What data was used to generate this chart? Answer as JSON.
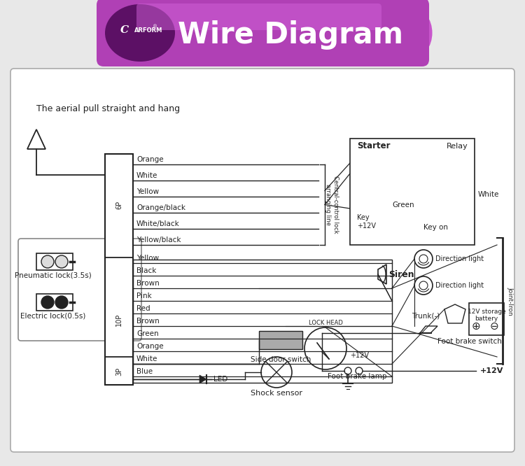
{
  "title": "Wire Diagram",
  "logo_text": "CARFORM",
  "bg_color": "#e8e8e8",
  "diagram_bg": "#ffffff",
  "wire_lines_6p": [
    "Orange",
    "White",
    "Yellow",
    "Orange/black",
    "White/black",
    "Yellow/black"
  ],
  "wire_lines_10p": [
    "Yellow",
    "Black",
    "Brown",
    "Pink",
    "Red",
    "Brown",
    "Green",
    "Orange",
    "White",
    "Blue"
  ],
  "label_6p": "6P",
  "label_10p": "10P",
  "label_3p": "3P",
  "aerial_text": "The aerial pull straight and hang",
  "pneumatic_text": "Pneumatic lock(3.5s)",
  "electric_text": "Electric lock(0.5s)",
  "central_control_text": "Central-control lock\narranging line",
  "starter_text": "Starter",
  "relay_text": "Relay",
  "green_text": "Green",
  "white_text": "White",
  "key_text": "Key\n+12V",
  "keyon_text": "Key on",
  "siren_text": "Siren",
  "direction_text": "Direction light",
  "trunk_text": "Trunk(-)",
  "battery_text": "12V storage\nbattery",
  "foot_brake_switch_text": "Foot brake switch",
  "foot_brake_lamp_text": "Foot brake lamp",
  "shock_sensor_text": "Shock sensor",
  "side_door_text": "Side door switch",
  "lock_head_text": "LOCK HEAD",
  "joint_iron_text": "Joint-Iron",
  "plus12v_text": "+12V",
  "lc": "#222222",
  "header_purple": "#b040b5",
  "header_dark": "#5c1065",
  "header_mid": "#9030a0"
}
